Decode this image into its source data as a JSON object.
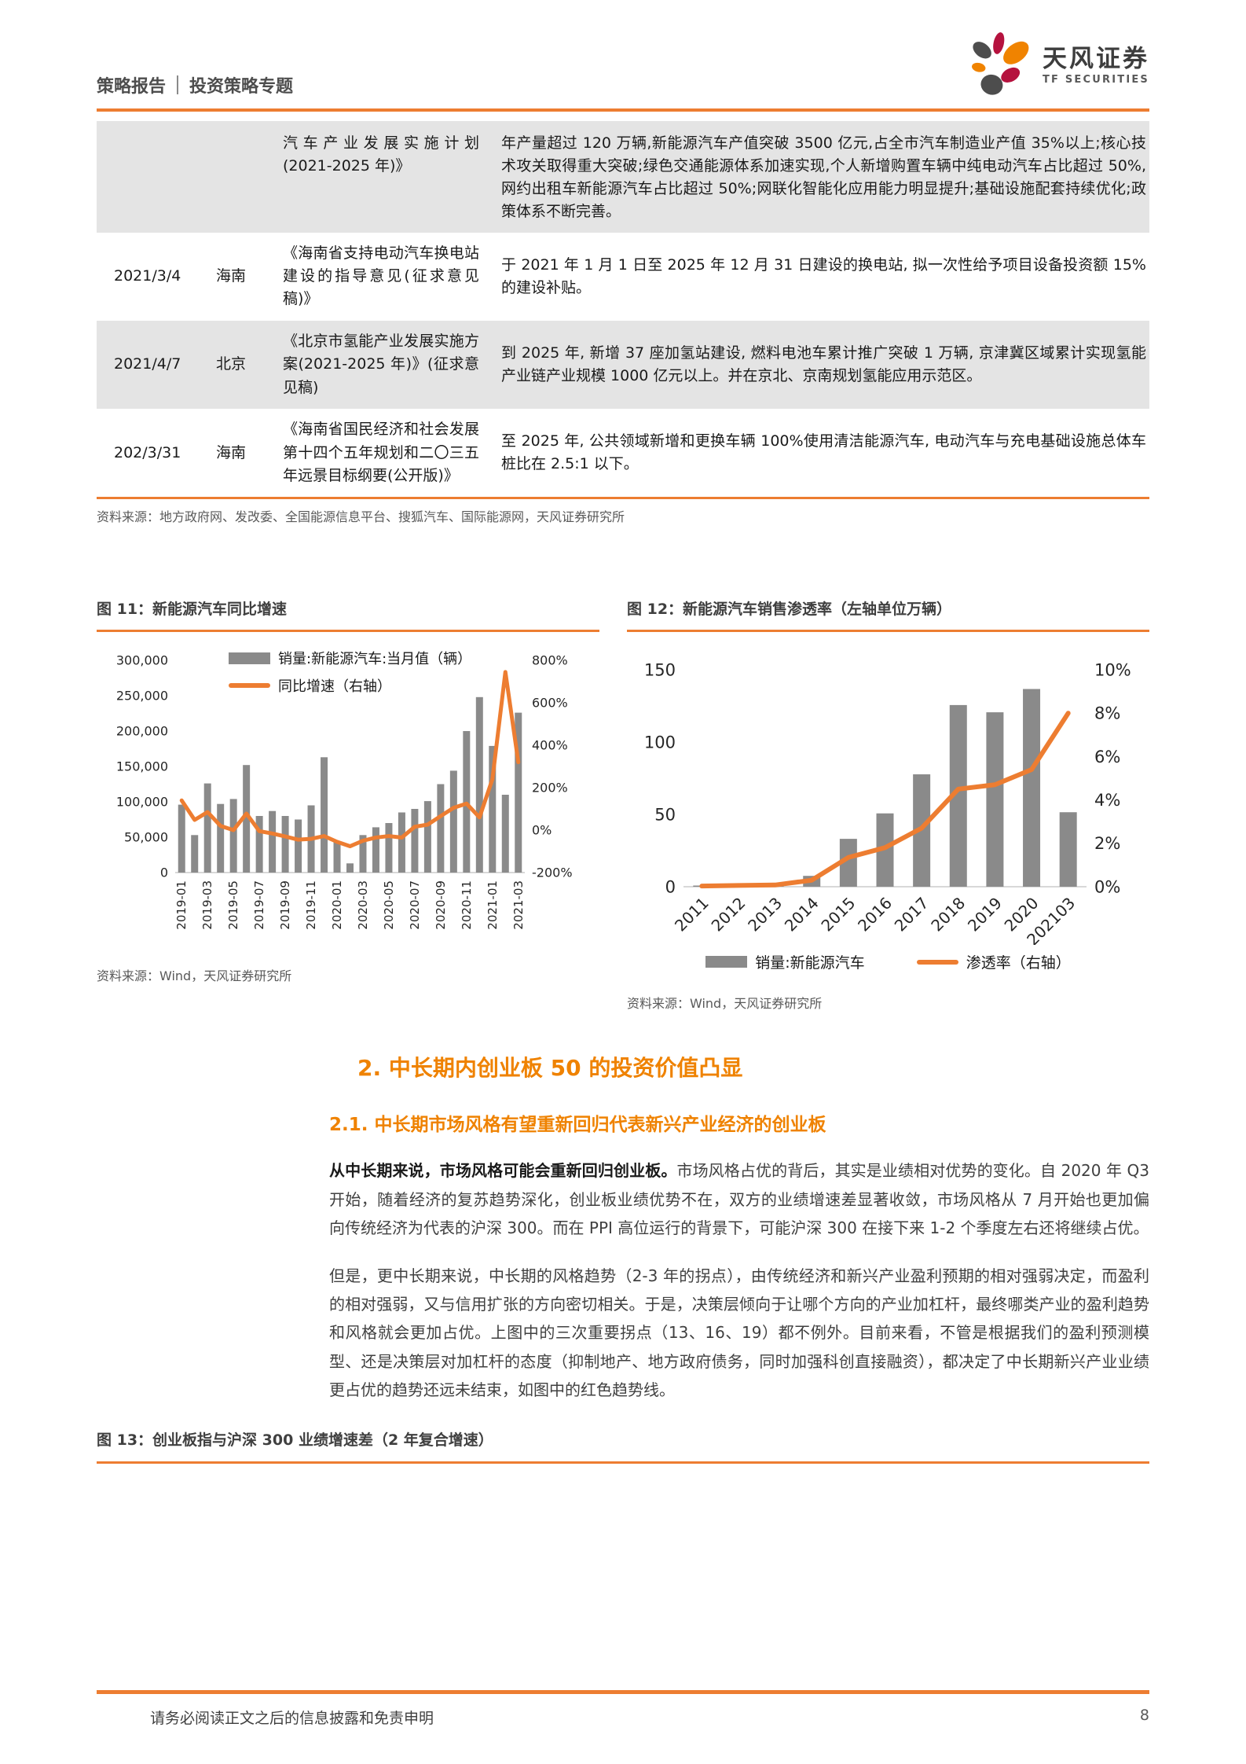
{
  "header": {
    "category": "策略报告",
    "topic": "投资策略专题",
    "brand_cn": "天风证券",
    "brand_en": "TF SECURITIES"
  },
  "policy_table": {
    "rows": [
      {
        "date": "",
        "region": "",
        "title": "汽车产业发展实施计划(2021-2025 年)》",
        "detail": "年产量超过 120 万辆,新能源汽车产值突破 3500 亿元,占全市汽车制造业产值 35%以上;核心技术攻关取得重大突破;绿色交通能源体系加速实现,个人新增购置车辆中纯电动汽车占比超过 50%,网约出租车新能源汽车占比超过 50%;网联化智能化应用能力明显提升;基础设施配套持续优化;政策体系不断完善。"
      },
      {
        "date": "2021/3/4",
        "region": "海南",
        "title": "《海南省支持电动汽车换电站建设的指导意见(征求意见稿)》",
        "detail": "于 2021 年 1 月 1 日至 2025 年 12 月 31 日建设的换电站, 拟一次性给予项目设备投资额 15%的建设补贴。"
      },
      {
        "date": "2021/4/7",
        "region": "北京",
        "title": "《北京市氢能产业发展实施方案(2021-2025 年)》(征求意见稿)",
        "detail": "到 2025 年, 新增 37 座加氢站建设, 燃料电池车累计推广突破 1 万辆, 京津冀区域累计实现氢能产业链产业规模 1000 亿元以上。并在京北、京南规划氢能应用示范区。"
      },
      {
        "date": "202/3/31",
        "region": "海南",
        "title": "《海南省国民经济和社会发展第十四个五年规划和二〇三五年远景目标纲要(公开版)》",
        "detail": "至 2025 年, 公共领域新增和更换车辆 100%使用清洁能源汽车, 电动汽车与充电基础设施总体车桩比在 2.5:1 以下。"
      }
    ],
    "source": "资料来源：地方政府网、发改委、全国能源信息平台、搜狐汽车、国际能源网，天风证券研究所"
  },
  "chart_data": [
    {
      "id": "fig11",
      "type": "bar+line",
      "title": "图 11：新能源汽车同比增速",
      "source": "资料来源：Wind，天风证券研究所",
      "legend_position": "top",
      "categories": [
        "2019-01",
        "2019-02",
        "2019-03",
        "2019-04",
        "2019-05",
        "2019-06",
        "2019-07",
        "2019-08",
        "2019-09",
        "2019-10",
        "2019-11",
        "2019-12",
        "2020-01",
        "2020-02",
        "2020-03",
        "2020-04",
        "2020-05",
        "2020-06",
        "2020-07",
        "2020-08",
        "2020-09",
        "2020-10",
        "2020-11",
        "2020-12",
        "2021-01",
        "2021-02",
        "2021-03"
      ],
      "series": [
        {
          "name": "销量:新能源汽车:当月值（辆）",
          "type": "bar",
          "axis": "left",
          "values": [
            96000,
            53000,
            126000,
            97000,
            104000,
            152000,
            80000,
            87000,
            80000,
            75000,
            95000,
            163000,
            44000,
            13000,
            53000,
            64000,
            70000,
            85000,
            90000,
            101000,
            125000,
            144000,
            200000,
            248000,
            179000,
            110000,
            226000
          ]
        },
        {
          "name": "同比增速（右轴）",
          "type": "line",
          "axis": "right",
          "values": [
            140,
            48,
            85,
            20,
            0,
            78,
            -5,
            -16,
            -30,
            -45,
            -41,
            -28,
            -55,
            -76,
            -50,
            -35,
            -28,
            -35,
            16,
            26,
            66,
            105,
            125,
            60,
            240,
            745,
            320
          ]
        }
      ],
      "left_axis": {
        "min": 0,
        "max": 300000,
        "step": 50000,
        "tick_labels": [
          "0",
          "50,000",
          "100,000",
          "150,000",
          "200,000",
          "250,000",
          "300,000"
        ]
      },
      "right_axis": {
        "min": -200,
        "max": 800,
        "step": 200,
        "tick_labels": [
          "-200%",
          "0%",
          "200%",
          "400%",
          "600%",
          "800%"
        ]
      },
      "x_label_every": 2,
      "x_label_rotation": -90
    },
    {
      "id": "fig12",
      "type": "bar+line",
      "title": "图 12：新能源汽车销售渗透率（左轴单位万辆）",
      "source": "资料来源：Wind，天风证券研究所",
      "legend_position": "bottom",
      "categories": [
        "2011",
        "2012",
        "2013",
        "2014",
        "2015",
        "2016",
        "2017",
        "2018",
        "2019",
        "2020",
        "202103"
      ],
      "series": [
        {
          "name": "销量:新能源汽车",
          "type": "bar",
          "axis": "left",
          "values": [
            0.8,
            1.3,
            1.8,
            7.5,
            33.1,
            50.7,
            77.7,
            125.6,
            120.6,
            136.7,
            51.5
          ]
        },
        {
          "name": "渗透率（右轴）",
          "type": "line",
          "axis": "right",
          "values": [
            0.03,
            0.06,
            0.08,
            0.3,
            1.35,
            1.8,
            2.7,
            4.5,
            4.7,
            5.4,
            8.0
          ]
        }
      ],
      "left_axis": {
        "min": 0,
        "max": 150,
        "step": 50,
        "tick_labels": [
          "0",
          "50",
          "100",
          "150"
        ]
      },
      "right_axis": {
        "min": 0,
        "max": 10,
        "step": 2,
        "tick_labels": [
          "0%",
          "2%",
          "4%",
          "6%",
          "8%",
          "10%"
        ]
      },
      "x_label_every": 1,
      "x_label_rotation": -45
    }
  ],
  "section2": {
    "h2": "2. 中长期内创业板 50 的投资价值凸显",
    "h3": "2.1. 中长期市场风格有望重新回归代表新兴产业经济的创业板",
    "p1_bold": "从中长期来说，市场风格可能会重新回归创业板。",
    "p1_rest": "市场风格占优的背后，其实是业绩相对优势的变化。自 2020 年 Q3 开始，随着经济的复苏趋势深化，创业板业绩优势不在，双方的业绩增速差显著收敛，市场风格从 7 月开始也更加偏向传统经济为代表的沪深 300。而在 PPI 高位运行的背景下，可能沪深 300 在接下来 1-2 个季度左右还将继续占优。",
    "p2": "但是，更中长期来说，中长期的风格趋势（2-3 年的拐点），由传统经济和新兴产业盈利预期的相对强弱决定，而盈利的相对强弱，又与信用扩张的方向密切相关。于是，决策层倾向于让哪个方向的产业加杠杆，最终哪类产业的盈利趋势和风格就会更加占优。上图中的三次重要拐点（13、16、19）都不例外。目前来看，不管是根据我们的盈利预测模型、还是决策层对加杠杆的态度（抑制地产、地方政府债务，同时加强科创直接融资），都决定了中长期新兴产业业绩更占优的趋势还远未结束，如图中的红色趋势线。"
  },
  "figure13": {
    "caption": "图 13：创业板指与沪深 300 业绩增速差（2 年复合增速）"
  },
  "footer": {
    "disclaimer": "请务必阅读正文之后的信息披露和免责申明",
    "page_number": "8"
  },
  "colors": {
    "accent": "#ED7D31",
    "bar": "#8A8A8A",
    "stripe": "#E4E4E4",
    "heading": "#EF8200"
  }
}
